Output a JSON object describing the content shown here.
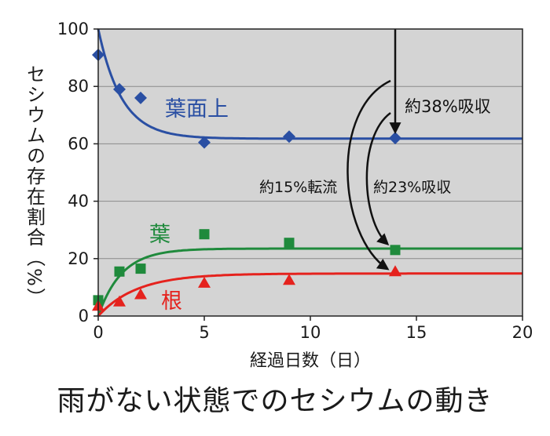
{
  "chart_data": {
    "type": "line",
    "caption": "雨がない状態でのセシウムの動き",
    "xlabel": "経過日数（日）",
    "ylabel": "セシウムの存在割合（%）",
    "xlim": [
      0,
      20
    ],
    "ylim": [
      0,
      100
    ],
    "xticks": [
      0,
      5,
      10,
      15,
      20
    ],
    "yticks": [
      0,
      20,
      40,
      60,
      80,
      100
    ],
    "grid": "horizontal",
    "background": "#d4d4d4",
    "series": [
      {
        "name": "葉面上",
        "color": "#2a4fa3",
        "marker": "diamond",
        "points": [
          [
            0,
            91
          ],
          [
            1,
            79
          ],
          [
            2,
            76
          ],
          [
            5,
            60.5
          ],
          [
            9,
            62.5
          ],
          [
            14,
            62
          ]
        ],
        "curve": {
          "start": 100,
          "end": 61.8,
          "rate": 0.9
        }
      },
      {
        "name": "葉",
        "color": "#1f8a3c",
        "marker": "square",
        "points": [
          [
            0,
            5.5
          ],
          [
            1,
            15.5
          ],
          [
            2,
            16.5
          ],
          [
            5,
            28.5
          ],
          [
            9,
            25.5
          ],
          [
            14,
            23
          ]
        ],
        "curve": {
          "start": 0,
          "end": 23.5,
          "rate": 0.9
        }
      },
      {
        "name": "根",
        "color": "#e5221d",
        "marker": "triangle",
        "points": [
          [
            0,
            3.5
          ],
          [
            1,
            5
          ],
          [
            2,
            7.5
          ],
          [
            5,
            11.5
          ],
          [
            9,
            12.5
          ],
          [
            14,
            15.5
          ]
        ],
        "curve": {
          "start": 0,
          "end": 14.8,
          "rate": 0.55
        }
      }
    ],
    "annotations": [
      {
        "text": "約38%吸収"
      },
      {
        "text": "約15%転流"
      },
      {
        "text": "約23%吸収"
      }
    ]
  }
}
